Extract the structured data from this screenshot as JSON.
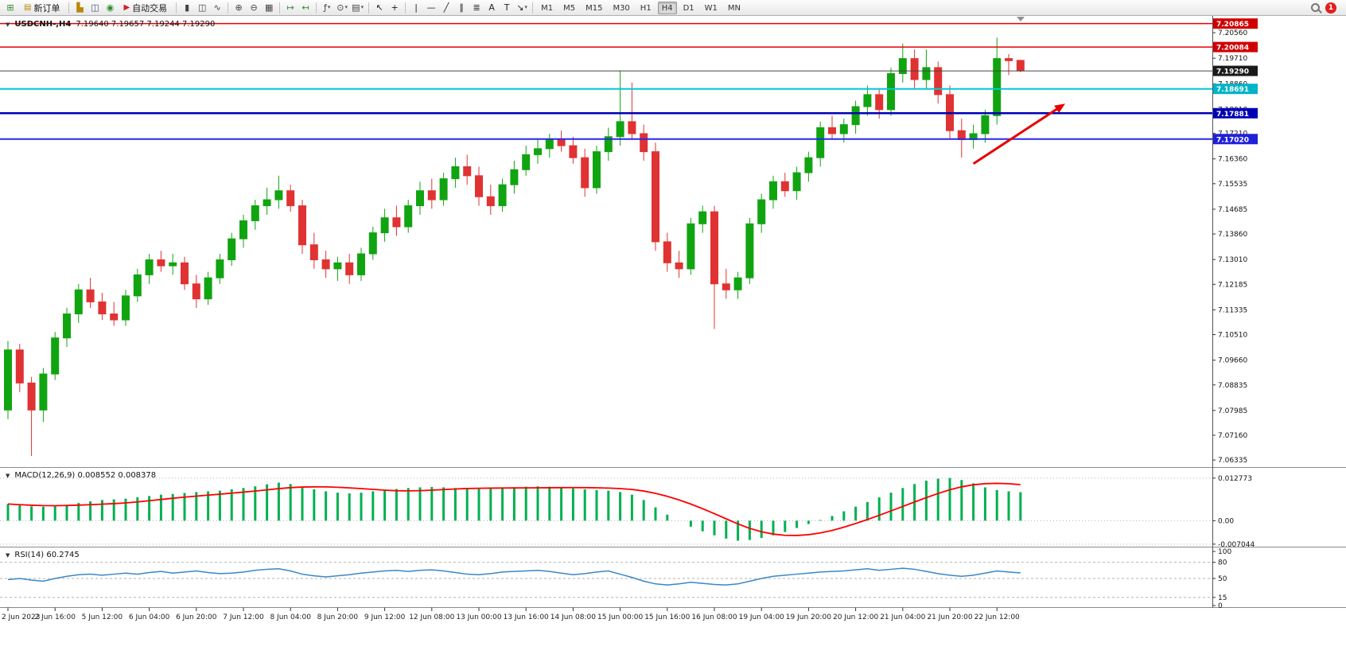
{
  "ui": {
    "collapse_glyph": "▼"
  },
  "toolbar": {
    "notification_count": "1",
    "timeframes": [
      "M1",
      "M5",
      "M15",
      "M30",
      "H1",
      "H4",
      "D1",
      "W1",
      "MN"
    ],
    "active_timeframe": "H4",
    "items": [
      {
        "t": "icon",
        "name": "new-chart-icon",
        "g": "⊞",
        "c": "#2e8b2e"
      },
      {
        "t": "button",
        "name": "new-order-button",
        "icon": "▤",
        "ic": "#b8860b",
        "label": "新订单"
      },
      {
        "t": "sep"
      },
      {
        "t": "icon",
        "name": "charts-profile-icon",
        "g": "▙",
        "c": "#b8860b"
      },
      {
        "t": "icon",
        "name": "market-watch-icon",
        "g": "◫",
        "c": "#445577"
      },
      {
        "t": "icon",
        "name": "data-window-icon",
        "g": "◉",
        "c": "#2e8b2e"
      },
      {
        "t": "button",
        "name": "auto-trading-button",
        "icon": "▶",
        "ic": "#cc2222",
        "label": "自动交易"
      },
      {
        "t": "sep"
      },
      {
        "t": "icon",
        "name": "bar-chart-type-icon",
        "g": "▮",
        "c": "#444444"
      },
      {
        "t": "icon",
        "name": "candlestick-type-icon",
        "g": "◫",
        "c": "#444444"
      },
      {
        "t": "icon",
        "name": "line-chart-type-icon",
        "g": "∿",
        "c": "#444444"
      },
      {
        "t": "sep"
      },
      {
        "t": "icon",
        "name": "zoom-in-icon",
        "g": "⊕",
        "c": "#444444"
      },
      {
        "t": "icon",
        "name": "zoom-out-icon",
        "g": "⊖",
        "c": "#444444"
      },
      {
        "t": "icon",
        "name": "tile-windows-icon",
        "g": "▦",
        "c": "#444444"
      },
      {
        "t": "sep"
      },
      {
        "t": "icon",
        "name": "auto-scroll-icon",
        "g": "↦",
        "c": "#2e8b2e"
      },
      {
        "t": "icon",
        "name": "chart-shift-icon",
        "g": "↤",
        "c": "#2e8b2e"
      },
      {
        "t": "sep"
      },
      {
        "t": "icon",
        "name": "indicators-icon",
        "g": "ƒ",
        "c": "#444444",
        "dd": true
      },
      {
        "t": "icon",
        "name": "periods-icon",
        "g": "⊙",
        "c": "#444444",
        "dd": true
      },
      {
        "t": "icon",
        "name": "templates-icon",
        "g": "▤",
        "c": "#444444",
        "dd": true
      },
      {
        "t": "sep"
      },
      {
        "t": "icon",
        "name": "cursor-icon",
        "g": "↖",
        "c": "#222222"
      },
      {
        "t": "icon",
        "name": "crosshair-icon",
        "g": "+",
        "c": "#222222"
      },
      {
        "t": "sep"
      },
      {
        "t": "icon",
        "name": "vertical-line-icon",
        "g": "|",
        "c": "#222222"
      },
      {
        "t": "icon",
        "name": "horizontal-line-icon",
        "g": "—",
        "c": "#222222"
      },
      {
        "t": "icon",
        "name": "trendline-icon",
        "g": "╱",
        "c": "#222222"
      },
      {
        "t": "icon",
        "name": "channel-icon",
        "g": "∥",
        "c": "#222222"
      },
      {
        "t": "icon",
        "name": "fibonacci-icon",
        "g": "≣",
        "c": "#222222"
      },
      {
        "t": "icon",
        "name": "text-icon",
        "g": "A",
        "c": "#222222"
      },
      {
        "t": "icon",
        "name": "text-label-icon",
        "g": "T",
        "c": "#222222"
      },
      {
        "t": "icon",
        "name": "arrows-icon",
        "g": "↘",
        "c": "#222222",
        "dd": true
      },
      {
        "t": "sep"
      }
    ]
  },
  "chart_data": {
    "type": "candlestick",
    "symbol": "USDCNH-,H4",
    "ohlc_text": "7.19640 7.19657 7.19244 7.19290",
    "ohlc": {
      "open": "7.19640",
      "high": "7.19657",
      "low": "7.19244",
      "close": "7.19290"
    },
    "main": {
      "ylim": [
        7.061,
        7.2112
      ],
      "up_color": "#11a411",
      "down_color": "#e03232",
      "y_ticks": [
        "7.20560",
        "7.19710",
        "7.18860",
        "7.18010",
        "7.17210",
        "7.16360",
        "7.15535",
        "7.14685",
        "7.13860",
        "7.13010",
        "7.12185",
        "7.11335",
        "7.10510",
        "7.09660",
        "7.08835",
        "7.07985",
        "7.07160",
        "7.06335"
      ],
      "h_lines": [
        {
          "name": "resistance-line-1",
          "price": 7.20865,
          "color": "#e80000",
          "width": 1.5,
          "tag": "7.20865",
          "tag_bg": "#d00000"
        },
        {
          "name": "resistance-line-2",
          "price": 7.20084,
          "color": "#e80000",
          "width": 1.5,
          "tag": "7.20084",
          "tag_bg": "#d00000"
        },
        {
          "name": "current-price-line",
          "price": 7.1929,
          "color": "#444444",
          "width": 1,
          "tag": "7.19290",
          "tag_bg": "#1a1a1a"
        },
        {
          "name": "cyan-level-line",
          "price": 7.18691,
          "color": "#00c8dc",
          "width": 2,
          "tag": "7.18691",
          "tag_bg": "#00b4c8"
        },
        {
          "name": "support-line-1",
          "price": 7.17881,
          "color": "#0000b4",
          "width": 2.5,
          "tag": "7.17881",
          "tag_bg": "#0000b4"
        },
        {
          "name": "support-line-2",
          "price": 7.1702,
          "color": "#2828e8",
          "width": 2,
          "tag": "7.17020",
          "tag_bg": "#2020d8"
        }
      ],
      "annotations": [
        {
          "type": "arrow",
          "name": "trend-arrow",
          "from_idx": 82,
          "from_price": 7.162,
          "to_idx": 89.8,
          "to_price": 7.182,
          "color": "#e80000",
          "width": 3
        }
      ],
      "x_labels": [
        {
          "i": 0,
          "t": "2 Jun 2023"
        },
        {
          "i": 4,
          "t": "2 Jun 16:00"
        },
        {
          "i": 8,
          "t": "5 Jun 12:00"
        },
        {
          "i": 12,
          "t": "6 Jun 04:00"
        },
        {
          "i": 16,
          "t": "6 Jun 20:00"
        },
        {
          "i": 20,
          "t": "7 Jun 12:00"
        },
        {
          "i": 24,
          "t": "8 Jun 04:00"
        },
        {
          "i": 28,
          "t": "8 Jun 20:00"
        },
        {
          "i": 32,
          "t": "9 Jun 12:00"
        },
        {
          "i": 36,
          "t": "12 Jun 08:00"
        },
        {
          "i": 40,
          "t": "13 Jun 00:00"
        },
        {
          "i": 44,
          "t": "13 Jun 16:00"
        },
        {
          "i": 48,
          "t": "14 Jun 08:00"
        },
        {
          "i": 52,
          "t": "15 Jun 00:00"
        },
        {
          "i": 56,
          "t": "15 Jun 16:00"
        },
        {
          "i": 60,
          "t": "16 Jun 08:00"
        },
        {
          "i": 64,
          "t": "19 Jun 04:00"
        },
        {
          "i": 68,
          "t": "19 Jun 20:00"
        },
        {
          "i": 72,
          "t": "20 Jun 12:00"
        },
        {
          "i": 76,
          "t": "21 Jun 04:00"
        },
        {
          "i": 80,
          "t": "21 Jun 20:00"
        },
        {
          "i": 84,
          "t": "22 Jun 12:00"
        }
      ],
      "candles": [
        [
          7.08,
          7.103,
          7.077,
          7.1
        ],
        [
          7.1,
          7.102,
          7.086,
          7.089
        ],
        [
          7.089,
          7.091,
          7.0647,
          7.08
        ],
        [
          7.08,
          7.094,
          7.076,
          7.092
        ],
        [
          7.092,
          7.106,
          7.09,
          7.104
        ],
        [
          7.104,
          7.114,
          7.101,
          7.112
        ],
        [
          7.112,
          7.122,
          7.109,
          7.12
        ],
        [
          7.12,
          7.124,
          7.114,
          7.116
        ],
        [
          7.116,
          7.119,
          7.11,
          7.112
        ],
        [
          7.112,
          7.116,
          7.108,
          7.11
        ],
        [
          7.11,
          7.12,
          7.108,
          7.118
        ],
        [
          7.118,
          7.127,
          7.116,
          7.125
        ],
        [
          7.125,
          7.132,
          7.122,
          7.13
        ],
        [
          7.13,
          7.133,
          7.126,
          7.128
        ],
        [
          7.128,
          7.132,
          7.125,
          7.129
        ],
        [
          7.129,
          7.131,
          7.12,
          7.122
        ],
        [
          7.122,
          7.125,
          7.114,
          7.117
        ],
        [
          7.117,
          7.126,
          7.115,
          7.124
        ],
        [
          7.124,
          7.132,
          7.122,
          7.13
        ],
        [
          7.13,
          7.139,
          7.128,
          7.137
        ],
        [
          7.137,
          7.145,
          7.134,
          7.143
        ],
        [
          7.143,
          7.15,
          7.14,
          7.148
        ],
        [
          7.148,
          7.154,
          7.145,
          7.15
        ],
        [
          7.15,
          7.158,
          7.147,
          7.153
        ],
        [
          7.153,
          7.155,
          7.146,
          7.148
        ],
        [
          7.148,
          7.15,
          7.132,
          7.135
        ],
        [
          7.135,
          7.139,
          7.127,
          7.13
        ],
        [
          7.13,
          7.133,
          7.124,
          7.127
        ],
        [
          7.127,
          7.131,
          7.123,
          7.129
        ],
        [
          7.129,
          7.132,
          7.122,
          7.125
        ],
        [
          7.125,
          7.134,
          7.123,
          7.132
        ],
        [
          7.132,
          7.141,
          7.13,
          7.139
        ],
        [
          7.139,
          7.147,
          7.136,
          7.144
        ],
        [
          7.144,
          7.148,
          7.138,
          7.141
        ],
        [
          7.141,
          7.15,
          7.139,
          7.148
        ],
        [
          7.148,
          7.156,
          7.145,
          7.153
        ],
        [
          7.153,
          7.157,
          7.147,
          7.15
        ],
        [
          7.15,
          7.159,
          7.148,
          7.157
        ],
        [
          7.157,
          7.164,
          7.154,
          7.161
        ],
        [
          7.161,
          7.165,
          7.155,
          7.158
        ],
        [
          7.158,
          7.161,
          7.148,
          7.151
        ],
        [
          7.151,
          7.155,
          7.145,
          7.148
        ],
        [
          7.148,
          7.157,
          7.146,
          7.155
        ],
        [
          7.155,
          7.163,
          7.152,
          7.16
        ],
        [
          7.16,
          7.168,
          7.158,
          7.165
        ],
        [
          7.165,
          7.17,
          7.162,
          7.167
        ],
        [
          7.167,
          7.172,
          7.164,
          7.17
        ],
        [
          7.17,
          7.173,
          7.166,
          7.168
        ],
        [
          7.168,
          7.171,
          7.162,
          7.164
        ],
        [
          7.164,
          7.167,
          7.151,
          7.154
        ],
        [
          7.154,
          7.168,
          7.152,
          7.166
        ],
        [
          7.166,
          7.174,
          7.163,
          7.171
        ],
        [
          7.171,
          7.193,
          7.168,
          7.176
        ],
        [
          7.176,
          7.189,
          7.17,
          7.172
        ],
        [
          7.172,
          7.175,
          7.163,
          7.166
        ],
        [
          7.166,
          7.169,
          7.133,
          7.136
        ],
        [
          7.136,
          7.139,
          7.126,
          7.129
        ],
        [
          7.129,
          7.133,
          7.124,
          7.127
        ],
        [
          7.127,
          7.144,
          7.125,
          7.142
        ],
        [
          7.142,
          7.148,
          7.139,
          7.146
        ],
        [
          7.146,
          7.148,
          7.107,
          7.122
        ],
        [
          7.122,
          7.127,
          7.117,
          7.12
        ],
        [
          7.12,
          7.126,
          7.117,
          7.124
        ],
        [
          7.124,
          7.144,
          7.122,
          7.142
        ],
        [
          7.142,
          7.152,
          7.139,
          7.15
        ],
        [
          7.15,
          7.158,
          7.147,
          7.156
        ],
        [
          7.156,
          7.159,
          7.151,
          7.153
        ],
        [
          7.153,
          7.161,
          7.15,
          7.159
        ],
        [
          7.159,
          7.166,
          7.156,
          7.164
        ],
        [
          7.164,
          7.176,
          7.161,
          7.174
        ],
        [
          7.174,
          7.178,
          7.17,
          7.172
        ],
        [
          7.172,
          7.177,
          7.169,
          7.175
        ],
        [
          7.175,
          7.183,
          7.172,
          7.181
        ],
        [
          7.181,
          7.188,
          7.178,
          7.185
        ],
        [
          7.185,
          7.187,
          7.177,
          7.18
        ],
        [
          7.18,
          7.194,
          7.178,
          7.192
        ],
        [
          7.192,
          7.202,
          7.189,
          7.197
        ],
        [
          7.197,
          7.2,
          7.187,
          7.19
        ],
        [
          7.19,
          7.2,
          7.187,
          7.194
        ],
        [
          7.194,
          7.196,
          7.182,
          7.185
        ],
        [
          7.185,
          7.188,
          7.17,
          7.173
        ],
        [
          7.173,
          7.177,
          7.164,
          7.17
        ],
        [
          7.17,
          7.175,
          7.167,
          7.172
        ],
        [
          7.172,
          7.18,
          7.169,
          7.178
        ],
        [
          7.178,
          7.204,
          7.175,
          7.197
        ],
        [
          7.197,
          7.1985,
          7.1915,
          7.1963
        ],
        [
          7.1964,
          7.19657,
          7.19244,
          7.1929
        ]
      ]
    },
    "macd": {
      "title": "MACD(12,26,9) 0.008552 0.008378",
      "label": "MACD(12,26,9)",
      "macd_value": "0.008552",
      "signal_value": "0.008378",
      "ylim": [
        -0.0078,
        0.0156
      ],
      "y_ticks": [
        "0.012773",
        "0.00",
        "-0.007044"
      ],
      "hist_color": "#00b050",
      "signal_color": "#ff0000",
      "values": [
        0.005,
        0.0046,
        0.0043,
        0.0042,
        0.0044,
        0.0048,
        0.0053,
        0.0058,
        0.0062,
        0.0064,
        0.0066,
        0.007,
        0.0074,
        0.0078,
        0.008,
        0.0083,
        0.0086,
        0.0088,
        0.009,
        0.0094,
        0.0098,
        0.0103,
        0.0109,
        0.0114,
        0.011,
        0.0102,
        0.0094,
        0.0088,
        0.0084,
        0.0082,
        0.0084,
        0.0088,
        0.0092,
        0.0095,
        0.0098,
        0.01,
        0.0101,
        0.01,
        0.0098,
        0.0096,
        0.0095,
        0.0096,
        0.0098,
        0.01,
        0.0102,
        0.0103,
        0.0102,
        0.01,
        0.0097,
        0.0094,
        0.0092,
        0.009,
        0.0086,
        0.0078,
        0.0062,
        0.004,
        0.0018,
        0.0,
        -0.0018,
        -0.0032,
        -0.0044,
        -0.0054,
        -0.006,
        -0.0058,
        -0.0052,
        -0.0044,
        -0.0034,
        -0.0022,
        -0.001,
        0.0002,
        0.0014,
        0.0028,
        0.0042,
        0.0056,
        0.007,
        0.0084,
        0.0098,
        0.011,
        0.012,
        0.0126,
        0.0128,
        0.0122,
        0.0112,
        0.01,
        0.0092,
        0.0088,
        0.008552
      ]
    },
    "rsi": {
      "title": "RSI(14) 60.2745",
      "label": "RSI(14)",
      "value": "60.2745",
      "ylim": [
        0,
        100
      ],
      "y_ticks": [
        "100",
        "80",
        "50",
        "15",
        "0"
      ],
      "levels": [
        80,
        50,
        15
      ],
      "color": "#3a87c8",
      "values": [
        48,
        50,
        47,
        45,
        50,
        54,
        57,
        58,
        56,
        58,
        60,
        58,
        61,
        63,
        60,
        62,
        64,
        61,
        59,
        60,
        62,
        65,
        67,
        68,
        64,
        58,
        55,
        53,
        55,
        57,
        60,
        62,
        64,
        65,
        63,
        65,
        66,
        64,
        61,
        58,
        57,
        59,
        62,
        63,
        64,
        65,
        63,
        60,
        57,
        59,
        62,
        64,
        58,
        52,
        45,
        40,
        38,
        40,
        43,
        41,
        39,
        38,
        40,
        45,
        50,
        54,
        56,
        58,
        60,
        62,
        63,
        64,
        66,
        68,
        65,
        67,
        69,
        67,
        63,
        59,
        56,
        54,
        56,
        60,
        64,
        62,
        60.27
      ]
    }
  }
}
